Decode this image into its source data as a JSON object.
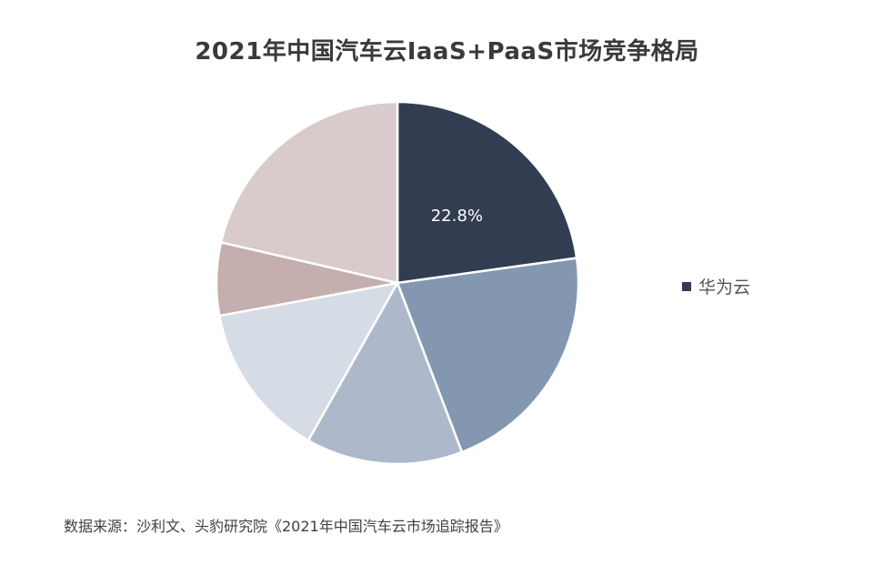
{
  "chart_data": {
    "type": "pie",
    "title": "2021年中国汽车云IaaS+PaaS市场竞争格局",
    "slices": [
      {
        "label": "华为云",
        "value": 22.8,
        "color": "#333d51",
        "data_label": "22.8%"
      },
      {
        "value": 21.4,
        "color": "#8497b0"
      },
      {
        "value": 14.0,
        "color": "#adb9ca"
      },
      {
        "value": 13.9,
        "color": "#d6dce5"
      },
      {
        "value": 6.5,
        "color": "#c4aeae"
      },
      {
        "value": 21.4,
        "color": "#d9cbcb"
      }
    ],
    "legend": {
      "position": "right",
      "entries": [
        "华为云"
      ]
    },
    "start_angle_deg": 0,
    "direction": "clockwise",
    "source": "数据来源：沙利文、头豹研究院《2021年中国汽车云市场追踪报告》"
  }
}
